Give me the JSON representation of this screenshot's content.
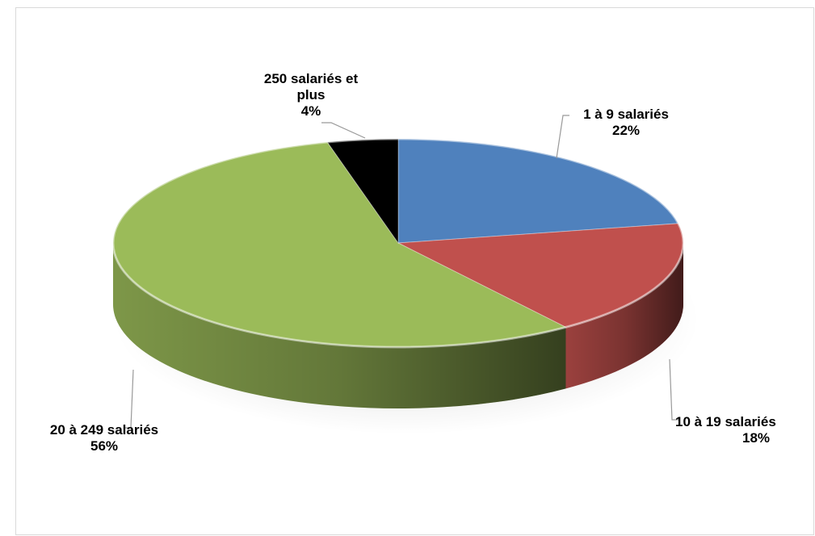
{
  "chart_data": {
    "type": "pie",
    "style": "3d",
    "title": "",
    "legend": "none",
    "slices": [
      {
        "label_lines": [
          "1 à 9 salariés"
        ],
        "value": 22,
        "value_label": "22%",
        "color": "#4f81bd"
      },
      {
        "label_lines": [
          "10 à 19 salariés"
        ],
        "value": 18,
        "value_label": "18%",
        "color": "#c0504d"
      },
      {
        "label_lines": [
          "20 à 249 salariés"
        ],
        "value": 56,
        "value_label": "56%",
        "color": "#9bbb59"
      },
      {
        "label_lines": [
          "250 salariés et",
          "plus"
        ],
        "value": 4,
        "value_label": "4%",
        "color": "#000000"
      }
    ]
  }
}
